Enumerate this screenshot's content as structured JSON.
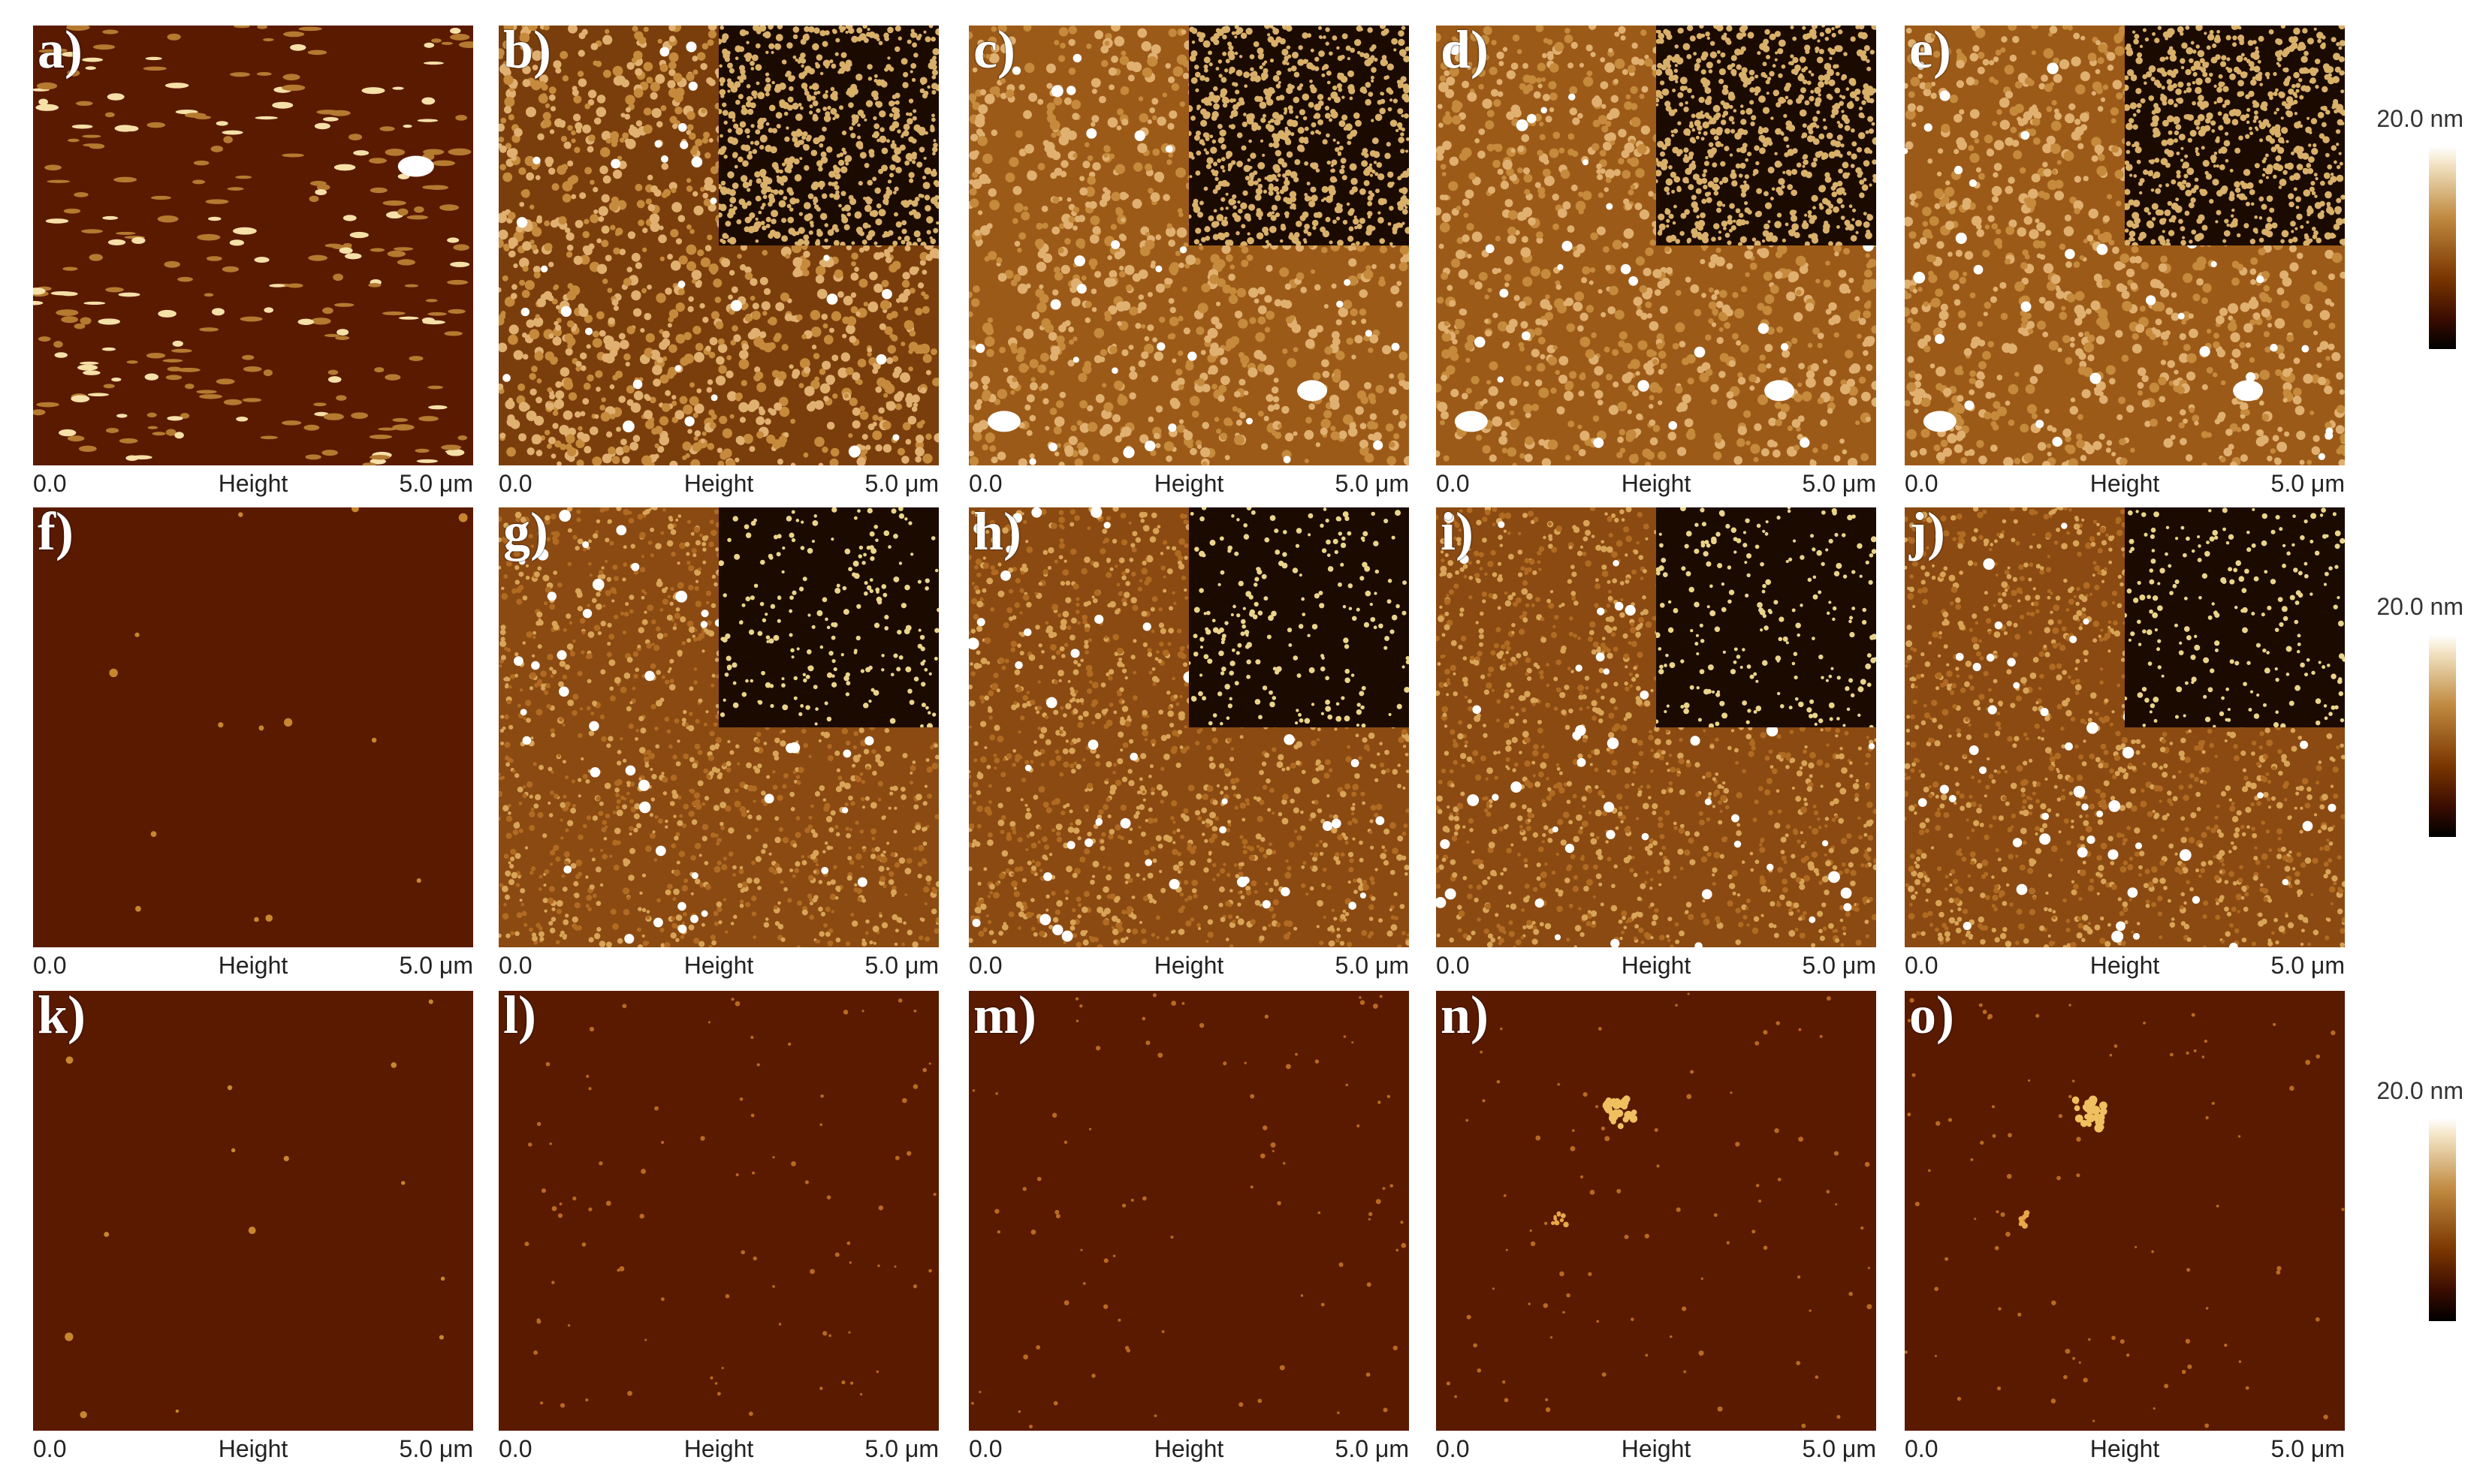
{
  "figure": {
    "panels": [
      {
        "id": "a",
        "label": "a)",
        "row": 0,
        "col": 0,
        "style": "stripes",
        "inset": false
      },
      {
        "id": "b",
        "label": "b)",
        "row": 0,
        "col": 1,
        "style": "dense",
        "inset": true
      },
      {
        "id": "c",
        "label": "c)",
        "row": 0,
        "col": 2,
        "style": "granular",
        "inset": true
      },
      {
        "id": "d",
        "label": "d)",
        "row": 0,
        "col": 3,
        "style": "granular",
        "inset": true
      },
      {
        "id": "e",
        "label": "e)",
        "row": 0,
        "col": 4,
        "style": "granular",
        "inset": true
      },
      {
        "id": "f",
        "label": "f)",
        "row": 1,
        "col": 0,
        "style": "dark",
        "inset": false
      },
      {
        "id": "g",
        "label": "g)",
        "row": 1,
        "col": 1,
        "style": "fine",
        "inset": true
      },
      {
        "id": "h",
        "label": "h)",
        "row": 1,
        "col": 2,
        "style": "fine",
        "inset": true
      },
      {
        "id": "i",
        "label": "i)",
        "row": 1,
        "col": 3,
        "style": "fine",
        "inset": true
      },
      {
        "id": "j",
        "label": "j)",
        "row": 1,
        "col": 4,
        "style": "fine",
        "inset": true
      },
      {
        "id": "k",
        "label": "k)",
        "row": 2,
        "col": 0,
        "style": "dark",
        "inset": false
      },
      {
        "id": "l",
        "label": "l)",
        "row": 2,
        "col": 1,
        "style": "sparse",
        "inset": false
      },
      {
        "id": "m",
        "label": "m)",
        "row": 2,
        "col": 2,
        "style": "sparse",
        "inset": false
      },
      {
        "id": "n",
        "label": "n)",
        "row": 2,
        "col": 3,
        "style": "sparse-cluster",
        "inset": false
      },
      {
        "id": "o",
        "label": "o)",
        "row": 2,
        "col": 4,
        "style": "sparse-cluster",
        "inset": false
      }
    ],
    "axis": {
      "start": "0.0",
      "middle": "Height",
      "end": "5.0 μm"
    },
    "scale_bars": [
      {
        "row": 0,
        "label": "20.0 nm"
      },
      {
        "row": 1,
        "label": "20.0 nm"
      },
      {
        "row": 2,
        "label": "20.0 nm"
      }
    ],
    "colors": {
      "dark": "#5a1a00",
      "base": "#7a3a08",
      "mid": "#b5722a",
      "light": "#f2d9a6",
      "peak": "#ffffff"
    }
  }
}
